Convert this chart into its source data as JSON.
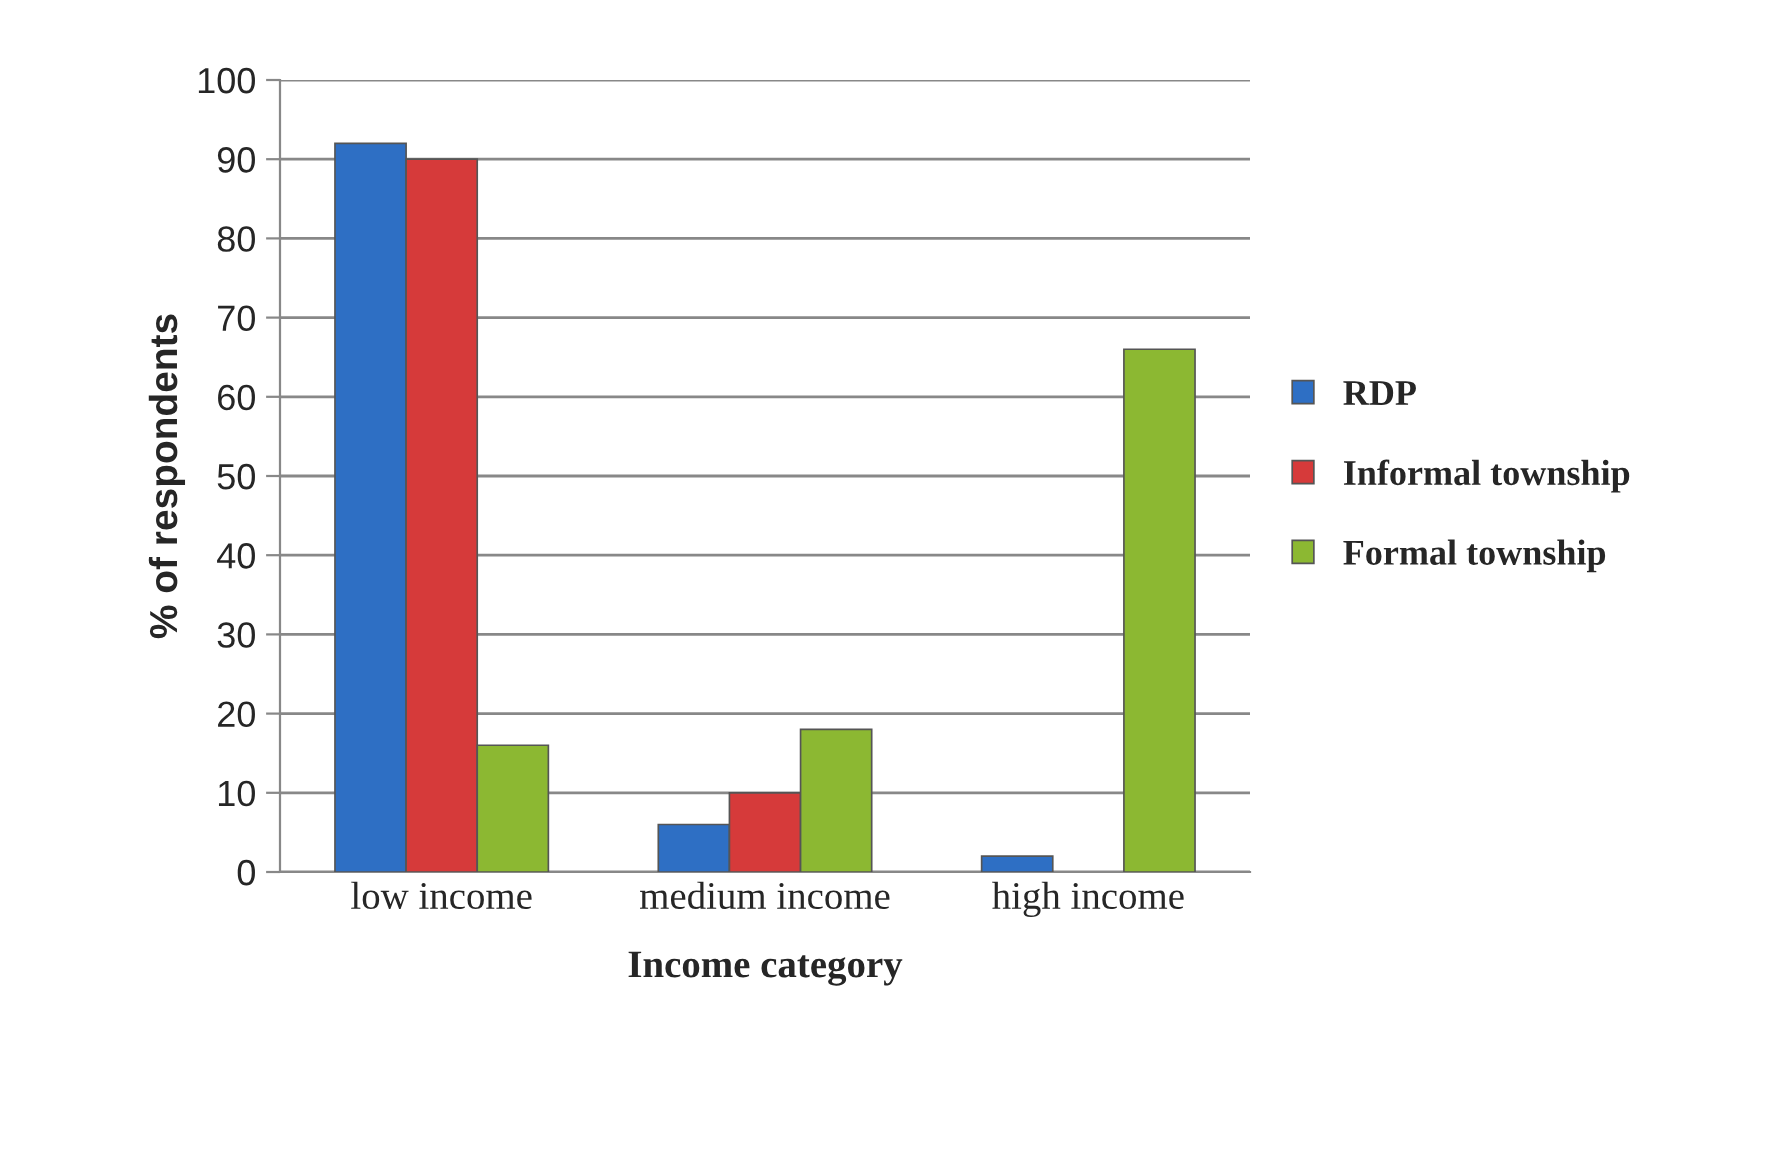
{
  "chart_data": {
    "type": "bar",
    "xlabel": "Income category",
    "ylabel": "% of respondents",
    "categories": [
      "low income",
      "medium income",
      "high income"
    ],
    "series": [
      {
        "name": "RDP",
        "color": "#2e6fc4",
        "values": [
          92,
          6,
          2
        ]
      },
      {
        "name": "Informal township",
        "color": "#d63a3a",
        "values": [
          90,
          10,
          null
        ]
      },
      {
        "name": "Formal township",
        "color": "#8cb832",
        "values": [
          16,
          18,
          66
        ]
      }
    ],
    "ylim": [
      0,
      100
    ],
    "yticks": [
      0,
      10,
      20,
      30,
      40,
      50,
      60,
      70,
      80,
      90,
      100
    ],
    "grid": "y",
    "legend": "right"
  }
}
